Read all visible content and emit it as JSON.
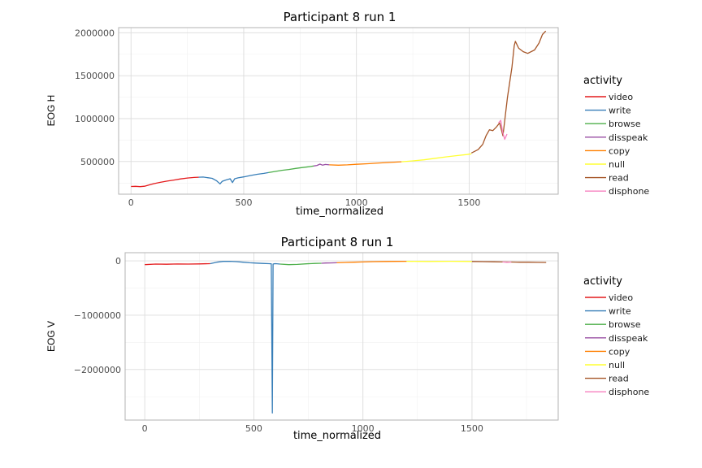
{
  "chart_data": [
    {
      "type": "line",
      "title": "Participant 8 run 1",
      "xlabel": "time_normalized",
      "ylabel": "EOG H",
      "xlim": [
        -55,
        1895
      ],
      "ylim": [
        120000,
        2060000
      ],
      "xticks": [
        0,
        500,
        1000,
        1500
      ],
      "yticks": [
        500000,
        1000000,
        1500000,
        2000000
      ],
      "legend_title": "activity",
      "legend_position": "right",
      "grid": true,
      "series": [
        {
          "name": "video",
          "color": "#E41A1C",
          "x": [
            0,
            20,
            40,
            60,
            80,
            100,
            130,
            160,
            190,
            220,
            250,
            280,
            300
          ],
          "y": [
            210000,
            212000,
            208000,
            213000,
            228000,
            242000,
            258000,
            272000,
            285000,
            298000,
            308000,
            315000,
            318000
          ]
        },
        {
          "name": "write",
          "color": "#377EB8",
          "x": [
            300,
            320,
            340,
            360,
            380,
            395,
            405,
            420,
            440,
            450,
            460,
            475,
            500,
            530,
            560,
            590,
            610
          ],
          "y": [
            318000,
            320000,
            312000,
            305000,
            275000,
            240000,
            270000,
            285000,
            300000,
            255000,
            300000,
            310000,
            322000,
            338000,
            352000,
            362000,
            372000
          ]
        },
        {
          "name": "browse",
          "color": "#4DAF4A",
          "x": [
            610,
            640,
            670,
            700,
            730,
            760,
            790,
            810
          ],
          "y": [
            372000,
            385000,
            398000,
            408000,
            420000,
            430000,
            440000,
            448000
          ]
        },
        {
          "name": "disspeak",
          "color": "#984EA3",
          "x": [
            810,
            825,
            838,
            850,
            862,
            880
          ],
          "y": [
            448000,
            455000,
            470000,
            458000,
            466000,
            462000
          ]
        },
        {
          "name": "copy",
          "color": "#FF7F00",
          "x": [
            880,
            920,
            960,
            1000,
            1050,
            1100,
            1150,
            1200
          ],
          "y": [
            462000,
            458000,
            462000,
            468000,
            475000,
            483000,
            490000,
            498000
          ]
        },
        {
          "name": "null",
          "color": "#FFFF33",
          "x": [
            1200,
            1250,
            1300,
            1350,
            1400,
            1450,
            1490,
            1510
          ],
          "y": [
            498000,
            508000,
            520000,
            538000,
            555000,
            570000,
            582000,
            590000
          ]
        },
        {
          "name": "read",
          "color": "#A65628",
          "x": [
            1510,
            1540,
            1560,
            1575,
            1590,
            1605,
            1620,
            1635,
            1650,
            1670,
            1690,
            1700,
            1705,
            1720,
            1740,
            1760,
            1790,
            1810,
            1825,
            1840
          ],
          "y": [
            600000,
            640000,
            700000,
            800000,
            870000,
            860000,
            900000,
            950000,
            800000,
            1250000,
            1600000,
            1850000,
            1900000,
            1820000,
            1780000,
            1760000,
            1800000,
            1880000,
            1980000,
            2020000
          ]
        },
        {
          "name": "disphone",
          "color": "#F781BF",
          "x": [
            1630,
            1640,
            1648,
            1658,
            1668
          ],
          "y": [
            950000,
            980000,
            850000,
            760000,
            820000
          ]
        }
      ]
    },
    {
      "type": "line",
      "title": "Participant 8 run 1",
      "xlabel": "time_normalized",
      "ylabel": "EOG V",
      "xlim": [
        -90,
        1895
      ],
      "ylim": [
        -2930000,
        150000
      ],
      "xticks": [
        0,
        500,
        1000,
        1500
      ],
      "yticks": [
        0,
        -1000000,
        -2000000
      ],
      "legend_title": "activity",
      "legend_position": "right",
      "grid": true,
      "series": [
        {
          "name": "video",
          "color": "#E41A1C",
          "x": [
            0,
            50,
            100,
            150,
            200,
            250,
            300
          ],
          "y": [
            -70000,
            -60000,
            -62000,
            -58000,
            -60000,
            -57000,
            -52000
          ]
        },
        {
          "name": "write",
          "color": "#377EB8",
          "x": [
            300,
            330,
            360,
            390,
            420,
            450,
            480,
            510,
            540,
            570,
            580,
            585,
            588,
            592,
            600,
            620
          ],
          "y": [
            -52000,
            -25000,
            -10000,
            -8000,
            -15000,
            -25000,
            -35000,
            -42000,
            -48000,
            -52000,
            -55000,
            -2800000,
            -60000,
            -55000,
            -52000,
            -60000
          ]
        },
        {
          "name": "browse",
          "color": "#4DAF4A",
          "x": [
            620,
            660,
            700,
            740,
            780,
            810
          ],
          "y": [
            -60000,
            -70000,
            -65000,
            -55000,
            -48000,
            -45000
          ]
        },
        {
          "name": "disspeak",
          "color": "#984EA3",
          "x": [
            810,
            830,
            850,
            880
          ],
          "y": [
            -45000,
            -40000,
            -38000,
            -35000
          ]
        },
        {
          "name": "copy",
          "color": "#FF7F00",
          "x": [
            880,
            920,
            960,
            1000,
            1050,
            1100,
            1150,
            1200
          ],
          "y": [
            -35000,
            -30000,
            -25000,
            -20000,
            -15000,
            -12000,
            -10000,
            -8000
          ]
        },
        {
          "name": "null",
          "color": "#FFFF33",
          "x": [
            1200,
            1250,
            1300,
            1350,
            1400,
            1450,
            1500
          ],
          "y": [
            -8000,
            -10000,
            -12000,
            -10000,
            -8000,
            -10000,
            -12000
          ]
        },
        {
          "name": "read",
          "color": "#A65628",
          "x": [
            1500,
            1550,
            1600,
            1640,
            1680,
            1720,
            1760,
            1800,
            1840
          ],
          "y": [
            -12000,
            -15000,
            -18000,
            -20000,
            -22000,
            -25000,
            -25000,
            -28000,
            -30000
          ]
        },
        {
          "name": "disphone",
          "color": "#F781BF",
          "x": [
            1640,
            1660,
            1680
          ],
          "y": [
            -20000,
            -28000,
            -22000
          ]
        }
      ]
    }
  ]
}
